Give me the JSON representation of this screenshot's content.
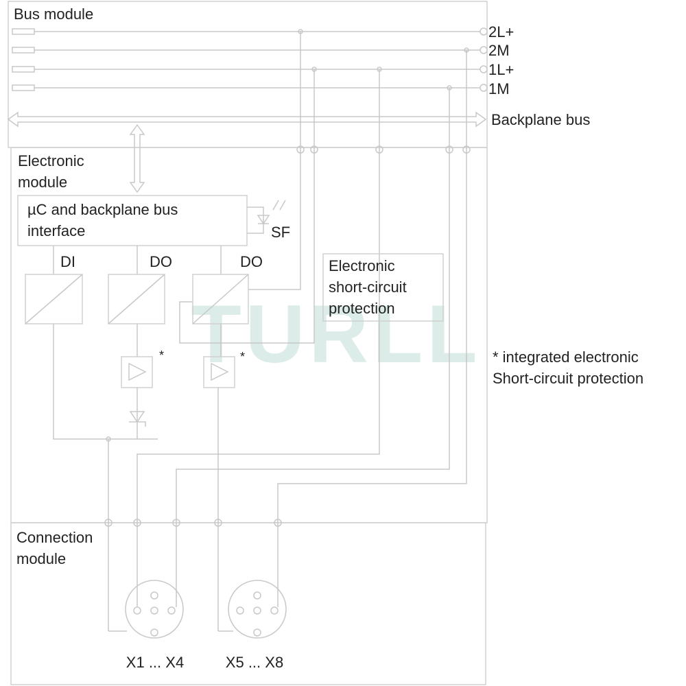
{
  "bus_module": {
    "title": "Bus module",
    "rails": [
      "2L+",
      "2M",
      "1L+",
      "1M"
    ],
    "backplane_bus": "Backplane bus"
  },
  "electronic_module": {
    "title": [
      "Electronic",
      "module"
    ],
    "controller": [
      "µC and backplane bus",
      "interface"
    ],
    "status_led": "SF",
    "channels": [
      "DI",
      "DO",
      "DO"
    ],
    "protection": [
      "Electronic",
      "short-circuit",
      "protection"
    ],
    "markers": [
      "*",
      "*"
    ]
  },
  "footnote": [
    "* integrated electronic",
    "Short-circuit protection"
  ],
  "connection_module": {
    "title": [
      "Connection",
      "module"
    ],
    "connectors": [
      "X1 ... X4",
      "X5 ... X8"
    ]
  },
  "watermark": "TURLL"
}
